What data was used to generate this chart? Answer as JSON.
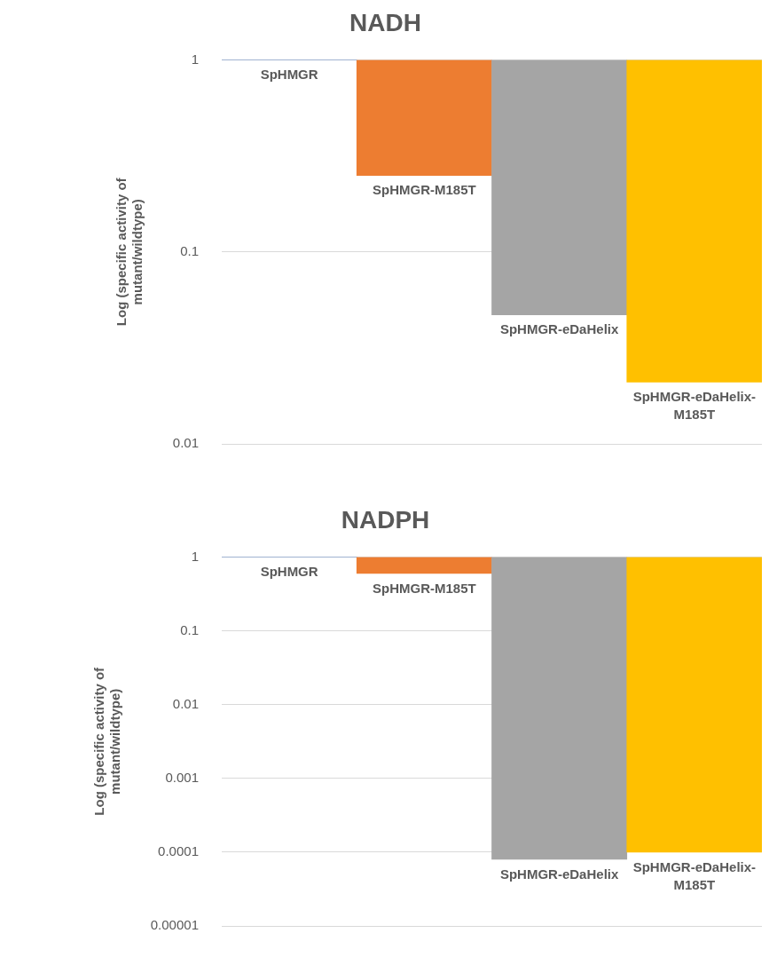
{
  "chart_data": [
    {
      "type": "bar",
      "title": "NADH",
      "ylabel": "Log (specific activity of mutant/wildtype)",
      "categories": [
        "SpHMGR",
        "SpHMGR-M185T",
        "SpHMGR-eDaHelix",
        "SpHMGR-eDaHelix-M185T"
      ],
      "base": [
        1,
        1,
        1,
        1
      ],
      "values": [
        0,
        -0.75,
        -0.953,
        -0.979
      ],
      "colors": [
        "#4472c4",
        "#ed7d31",
        "#a5a5a5",
        "#ffc000"
      ],
      "log": true,
      "ylim": [
        0.01,
        1
      ],
      "yticks": [
        0.01,
        0.1,
        1
      ],
      "grid": "y",
      "legend": false
    },
    {
      "type": "bar",
      "title": "NADPH",
      "ylabel": "Log (specific activity of mutant/wildtype)",
      "categories": [
        "SpHMGR",
        "SpHMGR-M185T",
        "SpHMGR-eDaHelix",
        "SpHMGR-eDaHelix-M185T"
      ],
      "base": [
        1,
        1,
        1,
        1
      ],
      "values": [
        0,
        -0.4,
        -0.99992,
        -0.9999
      ],
      "colors": [
        "#4472c4",
        "#ed7d31",
        "#a5a5a5",
        "#ffc000"
      ],
      "log": true,
      "ylim": [
        1e-05,
        1
      ],
      "yticks": [
        {
          "value": 1e-05,
          "label": "0.00001"
        },
        0.0001,
        0.001,
        0.01,
        0.1,
        1
      ],
      "grid": "y",
      "legend": false
    }
  ]
}
